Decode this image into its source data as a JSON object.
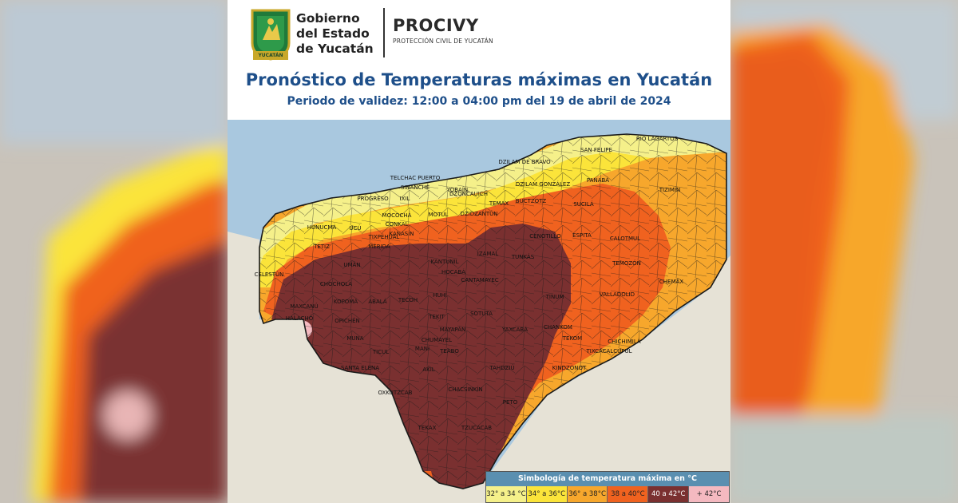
{
  "header": {
    "gov_line1": "Gobierno",
    "gov_line2": "del Estado",
    "gov_line3": "de Yucatán",
    "shield_text": "YUCATÁN",
    "agency_name": "PROCIVY",
    "agency_subtitle": "PROTECCIÓN CIVIL DE YUCATÁN",
    "title": "Pronóstico de Temperaturas máximas en Yucatán",
    "subtitle": "Periodo de validez: 12:00 a 04:00 pm del 19 de abril de 2024"
  },
  "map": {
    "municipalities": [
      {
        "id": "rio_lagartos",
        "label": "RIO LAGARTOS"
      },
      {
        "id": "san_felipe",
        "label": "SAN FELIPE"
      },
      {
        "id": "dzilam_bravo",
        "label": "DZILAM DE BRAVO"
      },
      {
        "id": "telchac_puerto",
        "label": "TELCHAC PUERTO"
      },
      {
        "id": "sinanche",
        "label": "SINANCHÉ"
      },
      {
        "id": "yobain",
        "label": "YOBAÍN"
      },
      {
        "id": "dzilam_gonzalez",
        "label": "DZILAM GONZÁLEZ"
      },
      {
        "id": "panaba",
        "label": "PANABÁ"
      },
      {
        "id": "tizimin",
        "label": "TIZIMÍN"
      },
      {
        "id": "progreso",
        "label": "PROGRESO"
      },
      {
        "id": "ixil",
        "label": "IXIL"
      },
      {
        "id": "temax",
        "label": "TEMAX"
      },
      {
        "id": "dzoncauich",
        "label": "DZONCAUICH"
      },
      {
        "id": "buctzotz",
        "label": "BUCTZOTZ"
      },
      {
        "id": "sucila",
        "label": "SUCILÁ"
      },
      {
        "id": "motul",
        "label": "MOTUL"
      },
      {
        "id": "mococha",
        "label": "MOCOCHÁ"
      },
      {
        "id": "conkal",
        "label": "CONKAL"
      },
      {
        "id": "hunucma",
        "label": "HUNUCMÁ"
      },
      {
        "id": "dzidzantun",
        "label": "DZIDZANTÚN"
      },
      {
        "id": "cenotillo",
        "label": "CENOTILLO"
      },
      {
        "id": "espita",
        "label": "ESPITA"
      },
      {
        "id": "calotmul",
        "label": "CALOTMUL"
      },
      {
        "id": "ucu",
        "label": "UCÚ"
      },
      {
        "id": "kanasin",
        "label": "KANASÍN"
      },
      {
        "id": "merida",
        "label": "MÉRIDA"
      },
      {
        "id": "tixpehual",
        "label": "TIXPÉHUAL"
      },
      {
        "id": "tetiz",
        "label": "TETIZ"
      },
      {
        "id": "izamal",
        "label": "IZAMAL"
      },
      {
        "id": "tunkas",
        "label": "TUNKÁS"
      },
      {
        "id": "temozon",
        "label": "TEMOZÓN"
      },
      {
        "id": "celestun",
        "label": "CELESTÚN"
      },
      {
        "id": "uman",
        "label": "UMÁN"
      },
      {
        "id": "chemax",
        "label": "CHEMAX"
      },
      {
        "id": "chochola",
        "label": "CHOCHOLÁ"
      },
      {
        "id": "hocaba",
        "label": "HOCABÁ"
      },
      {
        "id": "cantamayec",
        "label": "CANTAMAYEC"
      },
      {
        "id": "kantunil",
        "label": "KANTUNIL"
      },
      {
        "id": "tecoh",
        "label": "TECOH"
      },
      {
        "id": "huhi",
        "label": "HUHÍ"
      },
      {
        "id": "tinum",
        "label": "TINUM"
      },
      {
        "id": "valladolid",
        "label": "VALLADOLID"
      },
      {
        "id": "maxcanu",
        "label": "MAXCANÚ"
      },
      {
        "id": "kopoma",
        "label": "KOPOMÁ"
      },
      {
        "id": "abala",
        "label": "ABALÁ"
      },
      {
        "id": "halacho",
        "label": "HALACHÓ"
      },
      {
        "id": "opichen",
        "label": "OPICHÉN"
      },
      {
        "id": "tekit",
        "label": "TEKIT"
      },
      {
        "id": "sotuta",
        "label": "SOTUTA"
      },
      {
        "id": "mayapan",
        "label": "MAYAPÁN"
      },
      {
        "id": "yaxcaba",
        "label": "YAXCABÁ"
      },
      {
        "id": "chankom",
        "label": "CHANKOM"
      },
      {
        "id": "tekom",
        "label": "TEKOM"
      },
      {
        "id": "chichimila",
        "label": "CHICHIMILÁ"
      },
      {
        "id": "muna",
        "label": "MUNA"
      },
      {
        "id": "ticul",
        "label": "TICUL"
      },
      {
        "id": "chumayel",
        "label": "CHUMAYEL"
      },
      {
        "id": "teabo",
        "label": "TEABO"
      },
      {
        "id": "tixcacalcupul",
        "label": "TIXCACALCUPUL"
      },
      {
        "id": "santa_elena",
        "label": "SANTA ELENA"
      },
      {
        "id": "mani",
        "label": "MANÍ"
      },
      {
        "id": "akil",
        "label": "AKIL"
      },
      {
        "id": "tahdziu",
        "label": "TAHDZIÚ"
      },
      {
        "id": "kinchil",
        "label": "KINDZONOT"
      },
      {
        "id": "oxkutzcab",
        "label": "OXKUTZCAB"
      },
      {
        "id": "chacsinkin",
        "label": "CHACSINKÍN"
      },
      {
        "id": "peto",
        "label": "PETO"
      },
      {
        "id": "tekax",
        "label": "TEKAX"
      },
      {
        "id": "tzucacab",
        "label": "TZUCACAB"
      }
    ]
  },
  "legend": {
    "title": "Simbología de temperatura máxima en °C",
    "items": [
      {
        "label": "32° a 34 °C",
        "color": "#f5f08a"
      },
      {
        "label": "34° a 36°C",
        "color": "#fbe43a"
      },
      {
        "label": "36° a 38°C",
        "color": "#f7a72c"
      },
      {
        "label": "38 a 40°C",
        "color": "#f0621f"
      },
      {
        "label": "40 a 42°C",
        "color": "#7a3030"
      },
      {
        "label": "+ 42°C",
        "color": "#f4b9c0"
      }
    ]
  }
}
